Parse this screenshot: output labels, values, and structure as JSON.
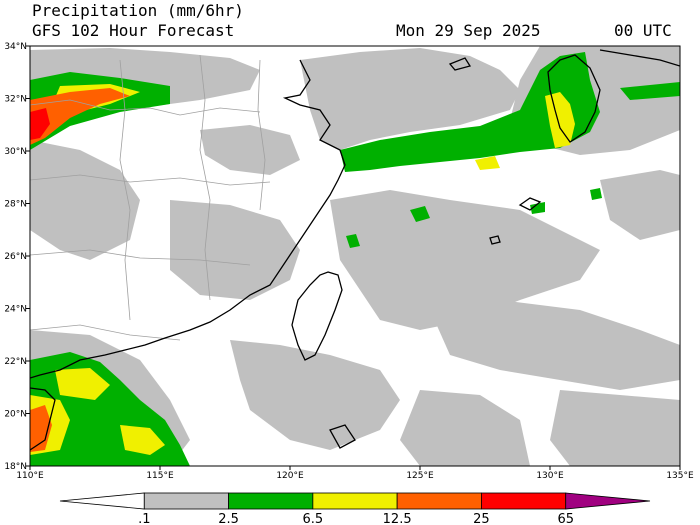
{
  "header": {
    "title": "Precipitation (mm/6hr)",
    "subtitle": "GFS 102 Hour Forecast",
    "date": "Mon 29 Sep 2025",
    "time": "00 UTC"
  },
  "map": {
    "lon_range": [
      110,
      135
    ],
    "lat_range": [
      18,
      34
    ],
    "lon_ticks": [
      "110°E",
      "115°E",
      "120°E",
      "125°E",
      "130°E",
      "135°E"
    ],
    "lat_ticks": [
      "18°N",
      "20°N",
      "22°N",
      "24°N",
      "26°N",
      "28°N",
      "30°N",
      "32°N",
      "34°N"
    ]
  },
  "colorbar": {
    "levels": [
      ".1",
      "2.5",
      "6.5",
      "12.5",
      "25",
      "65"
    ],
    "colors": [
      "#ffffff",
      "#c0c0c0",
      "#00b000",
      "#f0f000",
      "#ff6000",
      "#ff0000",
      "#a00080"
    ]
  }
}
